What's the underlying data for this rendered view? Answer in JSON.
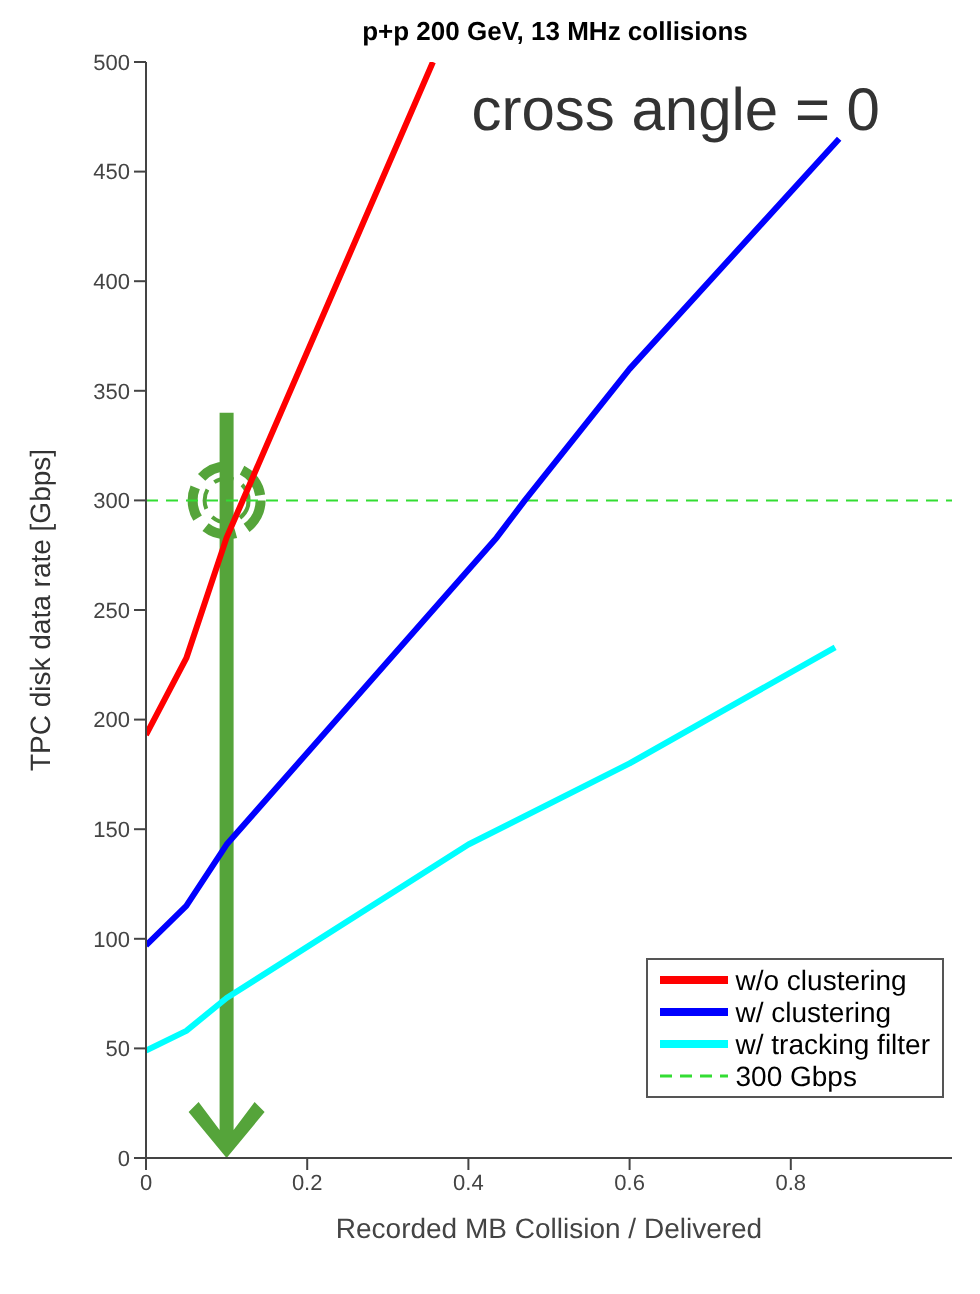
{
  "chart_data": {
    "type": "line",
    "title": "p+p 200 GeV, 13 MHz collisions",
    "xlabel": "Recorded MB Collision / Delivered",
    "ylabel": "TPC disk data rate [Gbps]",
    "annotations": [
      "cross angle = 0"
    ],
    "xlim": [
      0,
      1
    ],
    "xticks": [
      0,
      0.2,
      0.4,
      0.6,
      0.8
    ],
    "ylim": [
      0,
      500
    ],
    "yticks": [
      0,
      50,
      100,
      150,
      200,
      250,
      300,
      350,
      400,
      450,
      500
    ],
    "legend": "bottom right",
    "line_style": "solid",
    "marker": "none",
    "series": [
      {
        "name": "w/o clustering",
        "color": "#ff0000",
        "x": [
          0,
          0.05,
          0.1,
          0.356
        ],
        "values": [
          193,
          228,
          283,
          500
        ]
      },
      {
        "name": "w/ clustering",
        "color": "#0000ff",
        "x": [
          0,
          0.05,
          0.1,
          0.435,
          0.47,
          0.6,
          0.86
        ],
        "values": [
          97,
          115,
          143,
          283,
          300,
          360,
          465
        ]
      },
      {
        "name": "w/ tracking filter",
        "color": "#00ffff",
        "x": [
          0,
          0.05,
          0.1,
          0.4,
          0.6,
          0.855
        ],
        "values": [
          49,
          58,
          73,
          143,
          180,
          233
        ]
      }
    ],
    "ref_lines": [
      {
        "axis": "y",
        "value": 300,
        "label": "300 Gbps",
        "color": "#33dd33",
        "line_style": "dashed"
      }
    ]
  }
}
